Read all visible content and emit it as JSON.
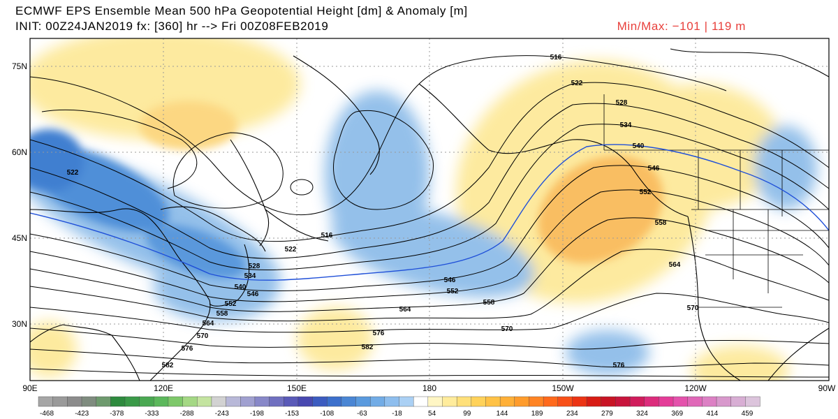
{
  "header": {
    "title": "ECMWF EPS Ensemble Mean 500 hPa Geopotential Height [dm] & Anomaly [m]",
    "init_line": "INIT: 00Z24JAN2019 fx: [360] hr --> Fri 00Z08FEB2019",
    "minmax": "Min/Max: −101 |  119 m"
  },
  "axes": {
    "lat_labels": [
      "75N",
      "60N",
      "45N",
      "30N"
    ],
    "lon_labels": [
      "90E",
      "120E",
      "150E",
      "180",
      "150W",
      "120W",
      "90W"
    ]
  },
  "contour_labels": [
    "516",
    "522",
    "528",
    "534",
    "540",
    "546",
    "552",
    "558",
    "564",
    "570",
    "576",
    "582"
  ],
  "colorbar": {
    "tick_labels": [
      "-468",
      "-423",
      "-378",
      "-333",
      "-288",
      "-243",
      "-198",
      "-153",
      "-108",
      "-63",
      "-18",
      "54",
      "99",
      "144",
      "189",
      "234",
      "279",
      "324",
      "369",
      "414",
      "459"
    ],
    "colors": [
      "#a6a6a6",
      "#9a9a9a",
      "#8c8c8c",
      "#7f8c7f",
      "#6e9a6e",
      "#2e8b3e",
      "#3a9a48",
      "#4aa852",
      "#5cb85c",
      "#7ec86a",
      "#a4d884",
      "#c4e4a0",
      "#d2d2d2",
      "#b8b8d8",
      "#a0a0d0",
      "#8888c8",
      "#7070c0",
      "#5a5ab8",
      "#4848b0",
      "#3c5cc0",
      "#3c70cc",
      "#4a86d4",
      "#5a9ade",
      "#72ace6",
      "#8ebeee",
      "#aad0f4",
      "#ffffff",
      "#fff6c4",
      "#ffec9c",
      "#ffe07a",
      "#ffd25a",
      "#ffc246",
      "#ffb038",
      "#ff9c2c",
      "#ff8424",
      "#ff6a1c",
      "#f85018",
      "#ec3414",
      "#d81c14",
      "#c81424",
      "#c8143c",
      "#d01c5c",
      "#dc2c7c",
      "#e43c98",
      "#e452ac",
      "#e068b8",
      "#dc80c4",
      "#d898cc",
      "#d8aed4",
      "#dcc4dc"
    ]
  },
  "colors": {
    "negative_anomaly": "#8fbde9",
    "negative_anomaly_strong": "#3f7fd0",
    "positive_anomaly": "#fde99a",
    "positive_anomaly_strong": "#f7a84a",
    "contour": "#000000",
    "contour_540": "#1f4fd8",
    "minmax_text": "#e8403c"
  }
}
